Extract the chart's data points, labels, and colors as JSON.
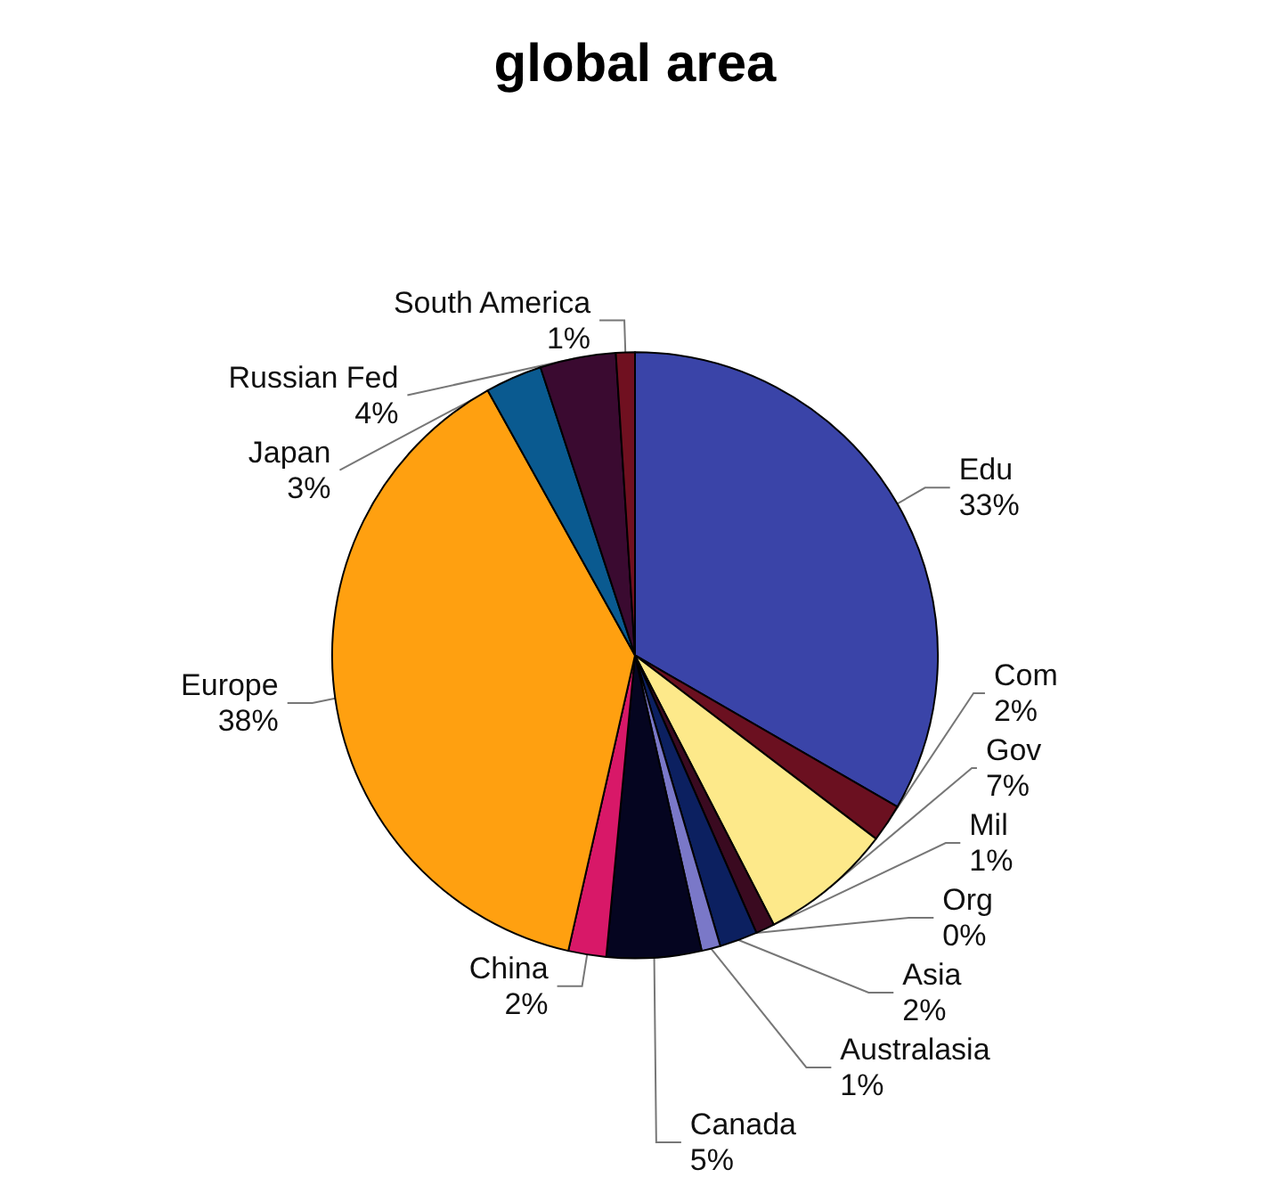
{
  "chart_data": {
    "type": "pie",
    "title": "global area",
    "categories": [
      "Edu",
      "Com",
      "Gov",
      "Mil",
      "Org",
      "Asia",
      "Australasia",
      "Canada",
      "China",
      "Europe",
      "Japan",
      "Russian Fed",
      "South America"
    ],
    "values": [
      33,
      2,
      7,
      1,
      0,
      2,
      1,
      5,
      2,
      38,
      3,
      4,
      1
    ],
    "value_labels": [
      "33%",
      "2%",
      "7%",
      "1%",
      "0%",
      "2%",
      "1%",
      "5%",
      "2%",
      "38%",
      "3%",
      "4%",
      "1%"
    ],
    "colors": [
      "#3a44a8",
      "#6b1020",
      "#fde98a",
      "#3a0a20",
      "#e83010",
      "#0c2060",
      "#7a78c8",
      "#050520",
      "#d81868",
      "#ffa010",
      "#0a5a90",
      "#3a0a30",
      "#701020"
    ],
    "legend": false
  }
}
